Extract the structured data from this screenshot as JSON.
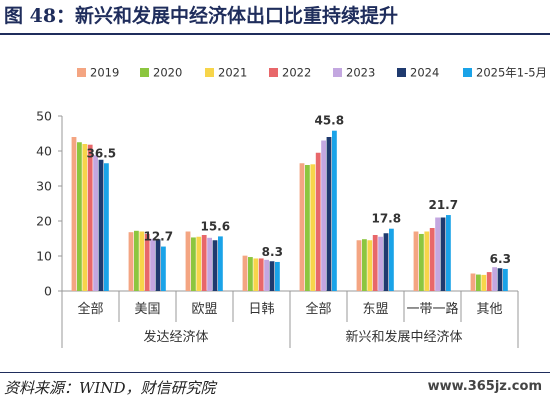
{
  "figure": {
    "title": "图 48：新兴和发展中经济体出口比重持续提升",
    "source": "资料来源：WIND，财信研究院",
    "watermark": "www.365jz.com"
  },
  "colors": {
    "2019": "#f4a582",
    "2020": "#8cc63f",
    "2021": "#f7d54a",
    "2022": "#e8676a",
    "2023": "#c3a7e0",
    "2024": "#1f3a6e",
    "2025年1-5月": "#1aa3e8",
    "axis": "#999999",
    "text": "#333333"
  },
  "chart_data": {
    "type": "bar",
    "ylim": [
      0,
      50
    ],
    "yticks": [
      0,
      10,
      20,
      30,
      40,
      50
    ],
    "legend_position": "top-center",
    "grid": false,
    "categories": [
      "全部",
      "美国",
      "欧盟",
      "日韩",
      "全部",
      "东盟",
      "一带一路",
      "其他"
    ],
    "groups": [
      {
        "label": "发达经济体",
        "from": 0,
        "to": 3
      },
      {
        "label": "新兴和发展中经济体",
        "from": 4,
        "to": 7
      }
    ],
    "series": [
      {
        "name": "2019",
        "values": [
          44.0,
          16.8,
          17.0,
          10.1,
          36.5,
          14.5,
          17.0,
          5.0
        ]
      },
      {
        "name": "2020",
        "values": [
          42.5,
          17.2,
          15.3,
          9.7,
          36.0,
          14.8,
          16.3,
          4.7
        ]
      },
      {
        "name": "2021",
        "values": [
          42.0,
          17.0,
          15.5,
          9.3,
          36.2,
          14.5,
          17.0,
          4.6
        ]
      },
      {
        "name": "2022",
        "values": [
          41.8,
          16.3,
          16.0,
          9.3,
          39.5,
          16.0,
          18.0,
          5.4
        ]
      },
      {
        "name": "2023",
        "values": [
          38.8,
          14.9,
          15.2,
          8.9,
          43.0,
          15.5,
          21.0,
          6.8
        ]
      },
      {
        "name": "2024",
        "values": [
          37.5,
          14.8,
          14.5,
          8.5,
          44.0,
          16.5,
          21.0,
          6.5
        ]
      },
      {
        "name": "2025年1-5月",
        "values": [
          36.5,
          12.7,
          15.6,
          8.3,
          45.8,
          17.8,
          21.7,
          6.3
        ]
      }
    ],
    "data_labels": {
      "series": "2025年1-5月",
      "values": [
        "36.5",
        "12.7",
        "15.6",
        "8.3",
        "45.8",
        "17.8",
        "21.7",
        "6.3"
      ]
    }
  }
}
